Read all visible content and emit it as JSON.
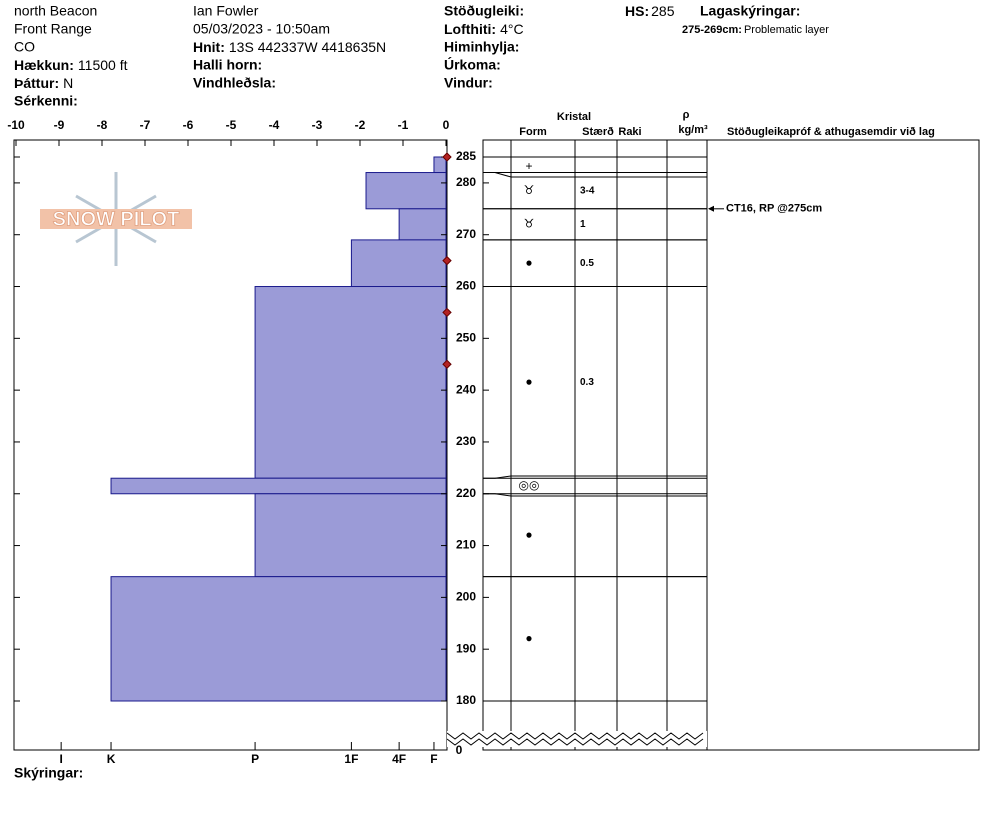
{
  "header": {
    "place": [
      "north Beacon",
      "Front Range",
      "CO"
    ],
    "observer": "Ian Fowler",
    "datetime": "05/03/2023 - 10:50am",
    "elevation": {
      "label": "Hækkun:",
      "value": "11500 ft"
    },
    "aspect": {
      "label": "Þáttur:",
      "value": "N"
    },
    "features": {
      "label": "Sérkenni:"
    },
    "coords": {
      "label": "Hnit:",
      "value": "13S 442337W 4418635N"
    },
    "slope": {
      "label": "Halli horn:"
    },
    "wind_loading": {
      "label": "Vindhleðsla:"
    },
    "stability": {
      "label": "Stöðugleiki:"
    },
    "air_temp": {
      "label": "Lofthiti:",
      "value": "4°C"
    },
    "sky": {
      "label": "Himinhylja:"
    },
    "precip": {
      "label": "Úrkoma:"
    },
    "wind": {
      "label": "Vindur:"
    },
    "hs": {
      "label": "HS:",
      "value": "285"
    },
    "legend_title": "Lagaskýringar:",
    "legend": {
      "range": "275-269cm:",
      "text": "Problematic layer"
    }
  },
  "logo": "SNOW PILOT",
  "columns": {
    "crystal": "Kristal",
    "form": "Form",
    "size": "Stærð",
    "moisture": "Raki",
    "rho": "ρ",
    "density": "kg/m³",
    "comments": "Stöðugleikapróf & athugasemdir við lag"
  },
  "footer": "Skýringar:",
  "chart_data": {
    "type": "snow-profile",
    "xlim": [
      -10,
      0
    ],
    "xticks": [
      -10,
      -9,
      -8,
      -7,
      -6,
      -5,
      -4,
      -3,
      -2,
      -1,
      0
    ],
    "ylim": [
      180,
      285
    ],
    "yticks": [
      180,
      190,
      200,
      210,
      220,
      230,
      240,
      250,
      260,
      270,
      280,
      285
    ],
    "ground_depth": 0,
    "hardness_ticks": [
      {
        "value": -8.95,
        "label": "I"
      },
      {
        "value": -7.79,
        "label": "K"
      },
      {
        "value": -4.44,
        "label": "P"
      },
      {
        "value": -2.2,
        "label": "1F"
      },
      {
        "value": -1.09,
        "label": "4F"
      },
      {
        "value": -0.28,
        "label": "F"
      }
    ],
    "color": "#9b9bd7",
    "layers": [
      {
        "top": 285,
        "bottom": 282,
        "hardness": -0.28,
        "form": "+"
      },
      {
        "top": 282,
        "bottom": 275,
        "hardness": -1.86,
        "form": "♉",
        "size": "3-4"
      },
      {
        "top": 275,
        "bottom": 269,
        "hardness": -1.09,
        "form": "♉",
        "size": "1"
      },
      {
        "top": 269,
        "bottom": 260,
        "hardness": -2.2,
        "form": "●",
        "size": "0.5"
      },
      {
        "top": 260,
        "bottom": 223,
        "hardness": -4.44,
        "form": "●",
        "size": "0.3"
      },
      {
        "top": 223,
        "bottom": 220,
        "hardness": -7.79,
        "form": "◎◎"
      },
      {
        "top": 220,
        "bottom": 204,
        "hardness": -4.44,
        "form": "●"
      },
      {
        "top": 204,
        "bottom": 180,
        "hardness": -7.79,
        "form": "●"
      }
    ],
    "markers": [
      285,
      265,
      255,
      245
    ],
    "marker_color": "#b22222",
    "tests": [
      {
        "depth": 275,
        "label": "CT16, RP @275cm"
      }
    ]
  }
}
